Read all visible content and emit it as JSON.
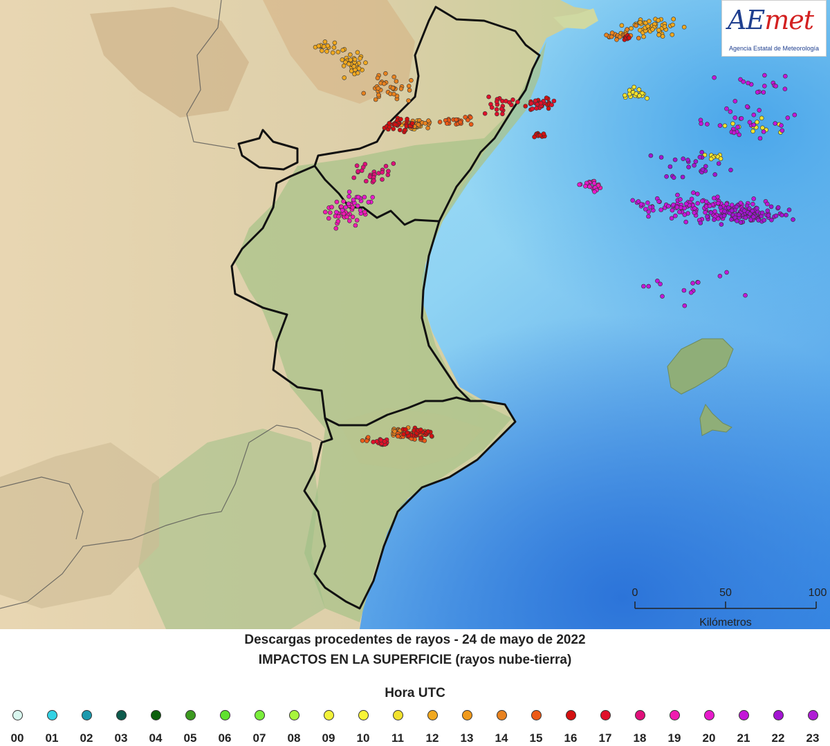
{
  "map": {
    "scale": {
      "ticks": [
        "0",
        "50",
        "100"
      ],
      "unit_label": "Kilómetros"
    }
  },
  "logo": {
    "word_left": "AE",
    "word_right": "met",
    "subtitle": "Agencia Estatal de Meteorología"
  },
  "title_line1": "Descargas procedentes de rayos - 24 de mayo de 2022",
  "title_line2": "IMPACTOS EN LA SUPERFICIE (rayos nube-tierra)",
  "legend": {
    "title": "Hora UTC",
    "hours": [
      "00",
      "01",
      "02",
      "03",
      "04",
      "05",
      "06",
      "07",
      "08",
      "09",
      "10",
      "11",
      "12",
      "13",
      "14",
      "15",
      "16",
      "17",
      "18",
      "19",
      "20",
      "21",
      "22",
      "23"
    ],
    "colors": [
      "#d9f7ef",
      "#33d2e4",
      "#1c99ad",
      "#0d5b4d",
      "#0d5f0d",
      "#3c9a20",
      "#5fe22e",
      "#7aee3b",
      "#a8f53d",
      "#f2f23a",
      "#f8f537",
      "#f2e22e",
      "#f0a81f",
      "#f09a1c",
      "#e8821f",
      "#ec5a16",
      "#d41010",
      "#e0102a",
      "#e0107a",
      "#f01cb0",
      "#e81acb",
      "#c316d8",
      "#a315d2",
      "#b01ed5"
    ]
  },
  "strikes": [
    {
      "hour": "12",
      "clusters": [
        [
          510,
          90,
          40,
          30,
          35
        ],
        [
          940,
          40,
          55,
          18,
          50
        ],
        [
          600,
          180,
          30,
          10,
          25
        ],
        [
          470,
          70,
          25,
          12,
          15
        ]
      ]
    },
    {
      "hour": "14",
      "clusters": [
        [
          560,
          130,
          45,
          25,
          35
        ],
        [
          600,
          180,
          40,
          10,
          25
        ],
        [
          900,
          50,
          40,
          15,
          20
        ],
        [
          580,
          625,
          30,
          8,
          20
        ]
      ]
    },
    {
      "hour": "11",
      "clusters": [
        [
          915,
          135,
          25,
          15,
          20
        ],
        [
          1100,
          185,
          60,
          20,
          12
        ],
        [
          1040,
          225,
          30,
          10,
          8
        ]
      ]
    },
    {
      "hour": "15",
      "clusters": [
        [
          660,
          175,
          35,
          12,
          20
        ],
        [
          600,
          630,
          40,
          10,
          30
        ],
        [
          530,
          635,
          10,
          6,
          6
        ]
      ]
    },
    {
      "hour": "16",
      "clusters": [
        [
          580,
          180,
          30,
          15,
          30
        ],
        [
          780,
          150,
          25,
          10,
          25
        ],
        [
          780,
          195,
          15,
          5,
          10
        ],
        [
          905,
          55,
          8,
          6,
          8
        ],
        [
          600,
          625,
          35,
          12,
          30
        ]
      ]
    },
    {
      "hour": "17",
      "clusters": [
        [
          720,
          150,
          40,
          20,
          20
        ],
        [
          780,
          150,
          25,
          10,
          15
        ],
        [
          550,
          640,
          20,
          8,
          15
        ]
      ]
    },
    {
      "hour": "18",
      "clusters": [
        [
          540,
          250,
          50,
          25,
          25
        ]
      ]
    },
    {
      "hour": "19",
      "clusters": [
        [
          500,
          310,
          45,
          30,
          35
        ],
        [
          860,
          265,
          25,
          10,
          10
        ]
      ]
    },
    {
      "hour": "20",
      "clusters": [
        [
          520,
          290,
          40,
          30,
          20
        ],
        [
          850,
          270,
          20,
          10,
          15
        ]
      ]
    },
    {
      "hour": "21",
      "clusters": [
        [
          1010,
          300,
          120,
          25,
          120
        ],
        [
          1080,
          180,
          100,
          40,
          30
        ],
        [
          990,
          420,
          150,
          40,
          15
        ],
        [
          1100,
          120,
          80,
          30,
          15
        ]
      ]
    },
    {
      "hour": "22",
      "clusters": [
        [
          1080,
          310,
          80,
          20,
          100
        ],
        [
          1000,
          240,
          90,
          30,
          25
        ]
      ]
    }
  ]
}
